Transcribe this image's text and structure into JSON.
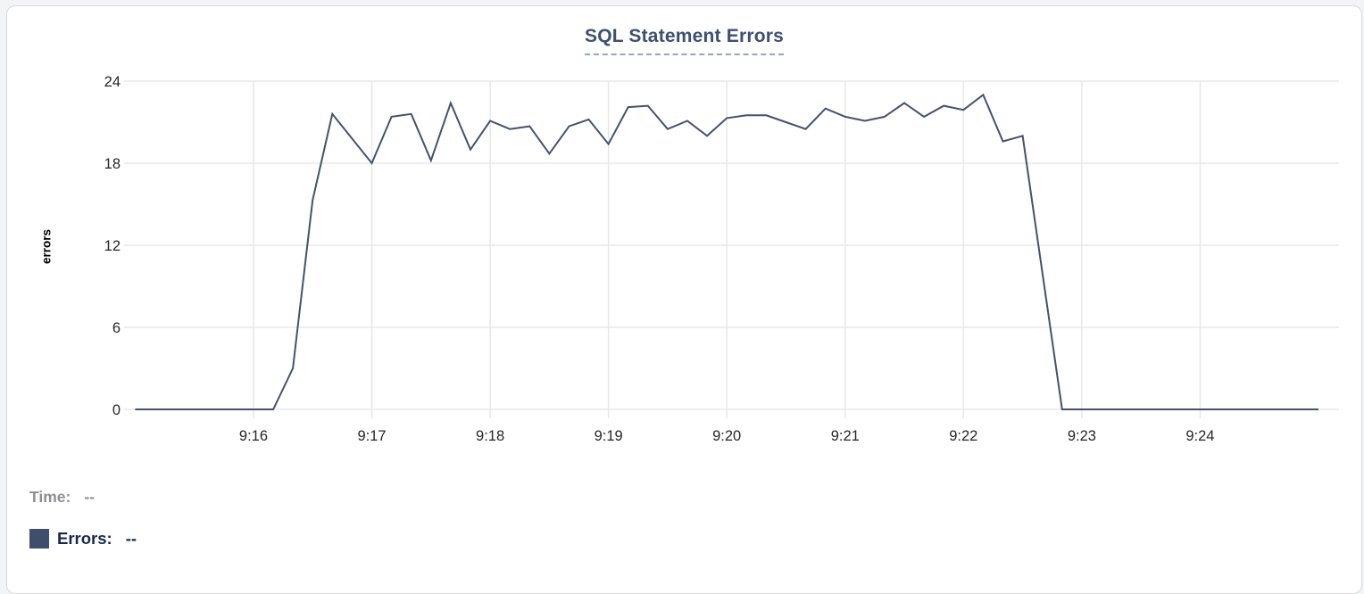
{
  "card": {
    "title": "SQL Statement Errors"
  },
  "legend": {
    "time_label": "Time:",
    "time_value": "--",
    "errors_label": "Errors:",
    "errors_value": "--",
    "swatch_color": "#3e4e6c"
  },
  "colors": {
    "line": "#44526f",
    "title": "#3d5070",
    "grid": "#e8e8e8",
    "axis_text": "#262626",
    "time_label_gray": "#8e8f92",
    "errors_navy": "#17274d",
    "card_border": "#d9d9d9"
  },
  "chart_data": {
    "type": "line",
    "title": "SQL Statement Errors",
    "xlabel": "",
    "ylabel": "errors",
    "ylim": [
      0,
      24
    ],
    "yticks": [
      0,
      6,
      12,
      18,
      24
    ],
    "grid": true,
    "legend_position": "bottom-left",
    "x_start": "9:15:00",
    "x_end": "9:25:00",
    "x_total_seconds": 600,
    "interval_seconds": 10,
    "xticks": [
      {
        "label": "9:16",
        "s": 60
      },
      {
        "label": "9:17",
        "s": 120
      },
      {
        "label": "9:18",
        "s": 180
      },
      {
        "label": "9:19",
        "s": 240
      },
      {
        "label": "9:20",
        "s": 300
      },
      {
        "label": "9:21",
        "s": 360
      },
      {
        "label": "9:22",
        "s": 420
      },
      {
        "label": "9:23",
        "s": 480
      },
      {
        "label": "9:24",
        "s": 540
      }
    ],
    "series": [
      {
        "name": "Errors",
        "color": "#44526f",
        "values": [
          0,
          0,
          0,
          0,
          0,
          0,
          0,
          0,
          3,
          15.3,
          21.6,
          19.8,
          18,
          21.4,
          21.6,
          18.2,
          22.4,
          19,
          21.1,
          20.5,
          20.7,
          18.7,
          20.7,
          21.2,
          19.4,
          22.1,
          22.2,
          20.5,
          21.1,
          20,
          21.3,
          21.5,
          21.5,
          21,
          20.5,
          22,
          21.4,
          21.1,
          21.4,
          22.4,
          21.4,
          22.2,
          21.9,
          23,
          19.6,
          20,
          10,
          0,
          0,
          0,
          0,
          0,
          0,
          0,
          0,
          0,
          0,
          0,
          0,
          0,
          0
        ]
      }
    ]
  }
}
